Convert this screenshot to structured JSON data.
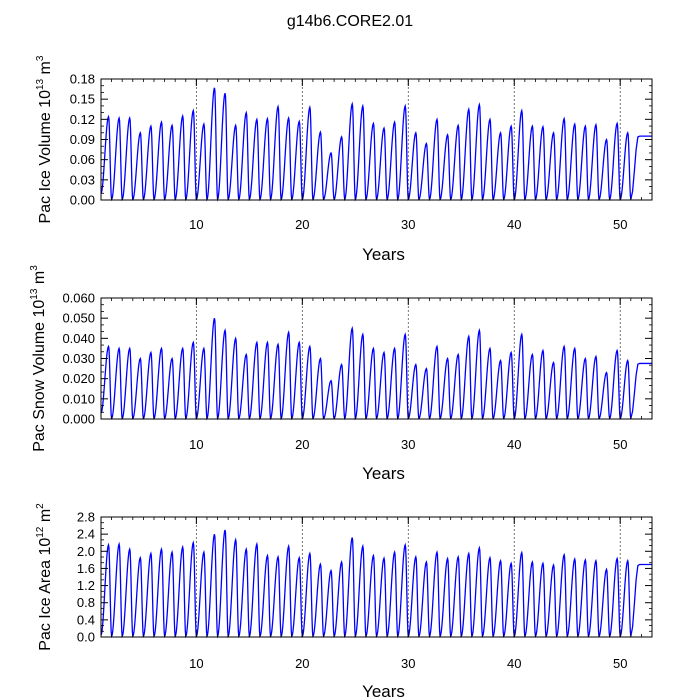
{
  "title": "g14b6.CORE2.01",
  "colors": {
    "series": "#0000ff",
    "grid": "#555555",
    "axes": "#000000"
  },
  "chart_data": [
    {
      "type": "line",
      "ylabel": {
        "prefix": "Pac Ice Volume 10",
        "exp1": "13",
        "mid": " m",
        "exp2": "3"
      },
      "xlabel": "Years",
      "xlim": [
        1,
        53
      ],
      "ylim": [
        0,
        0.18
      ],
      "yticks": [
        "0.00",
        "0.03",
        "0.06",
        "0.09",
        "0.12",
        "0.15",
        "0.18"
      ],
      "ytick_values": [
        0,
        0.03,
        0.06,
        0.09,
        0.12,
        0.15,
        0.18
      ],
      "xticks": [
        "10",
        "20",
        "30",
        "40",
        "50"
      ],
      "xtick_values": [
        10,
        20,
        30,
        40,
        50
      ],
      "grid": "vertical dashed at major x ticks",
      "annual_peaks": [
        0.124,
        0.122,
        0.122,
        0.1,
        0.11,
        0.116,
        0.111,
        0.125,
        0.133,
        0.113,
        0.167,
        0.159,
        0.111,
        0.13,
        0.12,
        0.121,
        0.139,
        0.122,
        0.117,
        0.138,
        0.101,
        0.07,
        0.094,
        0.143,
        0.14,
        0.114,
        0.107,
        0.116,
        0.14,
        0.1,
        0.084,
        0.12,
        0.097,
        0.111,
        0.135,
        0.142,
        0.12,
        0.1,
        0.11,
        0.133,
        0.11,
        0.109,
        0.1,
        0.121,
        0.113,
        0.11,
        0.112,
        0.09,
        0.114,
        0.1
      ],
      "annual_minima": [
        0.01,
        0.001,
        0.001,
        0.001,
        0.001,
        0.001,
        0.001,
        0.001,
        0.001,
        0.001,
        0.001,
        0.001,
        0.001,
        0.001,
        0.001,
        0.001,
        0.001,
        0.001,
        0.001,
        0.001,
        0.001,
        0.001,
        0.001,
        0.001,
        0.001,
        0.001,
        0.001,
        0.001,
        0.001,
        0.001,
        0.001,
        0.001,
        0.001,
        0.001,
        0.001,
        0.001,
        0.001,
        0.001,
        0.001,
        0.001,
        0.001,
        0.001,
        0.001,
        0.001,
        0.001,
        0.001,
        0.001,
        0.001,
        0.001,
        0.001,
        0.001,
        0.001
      ],
      "peak_phase": 0.72
    },
    {
      "type": "line",
      "ylabel": {
        "prefix": "Pac Snow Volume 10",
        "exp1": "13",
        "mid": " m",
        "exp2": "3"
      },
      "xlabel": "Years",
      "xlim": [
        1,
        53
      ],
      "ylim": [
        0,
        0.06
      ],
      "yticks": [
        "0.000",
        "0.010",
        "0.020",
        "0.030",
        "0.040",
        "0.050",
        "0.060"
      ],
      "ytick_values": [
        0,
        0.01,
        0.02,
        0.03,
        0.04,
        0.05,
        0.06
      ],
      "xticks": [
        "10",
        "20",
        "30",
        "40",
        "50"
      ],
      "xtick_values": [
        10,
        20,
        30,
        40,
        50
      ],
      "grid": "vertical dashed at major x ticks",
      "annual_peaks": [
        0.036,
        0.035,
        0.035,
        0.03,
        0.033,
        0.035,
        0.03,
        0.035,
        0.038,
        0.035,
        0.05,
        0.044,
        0.04,
        0.032,
        0.038,
        0.038,
        0.037,
        0.043,
        0.038,
        0.036,
        0.03,
        0.019,
        0.027,
        0.045,
        0.042,
        0.035,
        0.033,
        0.035,
        0.042,
        0.027,
        0.025,
        0.036,
        0.03,
        0.032,
        0.041,
        0.044,
        0.035,
        0.029,
        0.033,
        0.042,
        0.032,
        0.034,
        0.028,
        0.036,
        0.035,
        0.03,
        0.031,
        0.023,
        0.034,
        0.029
      ],
      "annual_minima": [
        0.003,
        0.0003,
        0.0003,
        0.0003,
        0.0003,
        0.0003,
        0.0003,
        0.0003,
        0.0003,
        0.0003,
        0.0003,
        0.0003,
        0.0003,
        0.0003,
        0.0003,
        0.0003,
        0.0003,
        0.0003,
        0.0003,
        0.0003,
        0.0003,
        0.0003,
        0.0003,
        0.0003,
        0.0003,
        0.0003,
        0.0003,
        0.0003,
        0.0003,
        0.0003,
        0.0003,
        0.0003,
        0.0003,
        0.0003,
        0.0003,
        0.0003,
        0.0003,
        0.0003,
        0.0003,
        0.0003,
        0.0003,
        0.0003,
        0.0003,
        0.0003,
        0.0003,
        0.0003,
        0.0003,
        0.0003,
        0.0003,
        0.0003,
        0.0003,
        0.0003
      ],
      "peak_phase": 0.72
    },
    {
      "type": "line",
      "ylabel": {
        "prefix": "Pac Ice Area 10",
        "exp1": "12",
        "mid": " m",
        "exp2": "2"
      },
      "xlabel": "Years",
      "xlim": [
        1,
        53
      ],
      "ylim": [
        0,
        2.8
      ],
      "yticks": [
        "0.0",
        "0.4",
        "0.8",
        "1.2",
        "1.6",
        "2.0",
        "2.4",
        "2.8"
      ],
      "ytick_values": [
        0,
        0.4,
        0.8,
        1.2,
        1.6,
        2.0,
        2.4,
        2.8
      ],
      "xticks": [
        "10",
        "20",
        "30",
        "40",
        "50"
      ],
      "xtick_values": [
        10,
        20,
        30,
        40,
        50
      ],
      "grid": "vertical dashed at major x ticks",
      "annual_peaks": [
        2.15,
        2.17,
        2.05,
        1.85,
        1.95,
        2.05,
        1.98,
        2.1,
        2.2,
        1.98,
        2.4,
        2.5,
        2.27,
        2.05,
        2.17,
        1.9,
        1.87,
        2.12,
        1.85,
        1.95,
        1.7,
        1.55,
        1.75,
        2.32,
        2.12,
        1.9,
        1.84,
        1.98,
        2.15,
        1.87,
        1.75,
        1.98,
        1.83,
        1.87,
        1.95,
        2.08,
        1.85,
        1.78,
        1.72,
        1.97,
        1.75,
        1.72,
        1.68,
        1.92,
        1.82,
        1.8,
        1.78,
        1.58,
        1.83,
        1.78
      ],
      "annual_minima": [
        0.05,
        0.02,
        0.02,
        0.02,
        0.02,
        0.02,
        0.02,
        0.02,
        0.02,
        0.02,
        0.02,
        0.02,
        0.02,
        0.02,
        0.02,
        0.02,
        0.02,
        0.02,
        0.02,
        0.02,
        0.02,
        0.02,
        0.02,
        0.02,
        0.02,
        0.02,
        0.02,
        0.02,
        0.02,
        0.02,
        0.02,
        0.02,
        0.02,
        0.02,
        0.02,
        0.02,
        0.02,
        0.02,
        0.02,
        0.02,
        0.02,
        0.02,
        0.02,
        0.02,
        0.02,
        0.02,
        0.02,
        0.02,
        0.02,
        0.02,
        0.02,
        0.02
      ],
      "peak_phase": 0.72
    }
  ]
}
